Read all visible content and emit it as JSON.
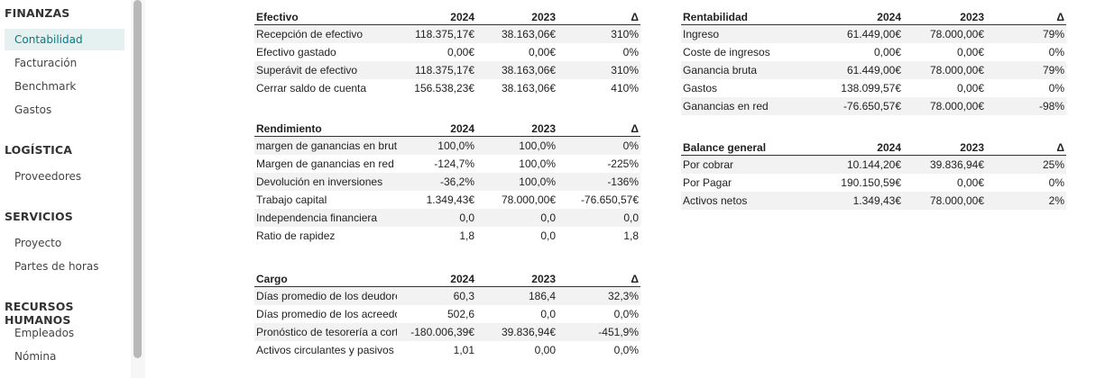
{
  "sidebar": {
    "sections": [
      {
        "title": "FINANZAS",
        "items": [
          "Contabilidad",
          "Facturación",
          "Benchmark",
          "Gastos"
        ]
      },
      {
        "title": "LOGÍSTICA",
        "items": [
          "Proveedores"
        ]
      },
      {
        "title": "SERVICIOS",
        "items": [
          "Proyecto",
          "Partes de horas"
        ]
      },
      {
        "title": "RECURSOS HUMANOS",
        "items": [
          "Empleados",
          "Nómina"
        ]
      }
    ],
    "active_item": "Contabilidad"
  },
  "tables": {
    "efectivo": {
      "headers": [
        "Efectivo",
        "2024",
        "2023",
        "Δ"
      ],
      "rows": [
        [
          "Recepción de efectivo",
          "118.375,17€",
          "38.163,06€",
          "310%"
        ],
        [
          "Efectivo gastado",
          "0,00€",
          "0,00€",
          "0%"
        ],
        [
          "Superávit de efectivo",
          "118.375,17€",
          "38.163,06€",
          "310%"
        ],
        [
          "Cerrar saldo de cuenta",
          "156.538,23€",
          "38.163,06€",
          "410%"
        ]
      ]
    },
    "rendimiento": {
      "headers": [
        "Rendimiento",
        "2024",
        "2023",
        "Δ"
      ],
      "rows": [
        [
          "margen de ganancias en bruto",
          "100,0%",
          "100,0%",
          "0%"
        ],
        [
          "Margen de ganancias en red",
          "-124,7%",
          "100,0%",
          "-225%"
        ],
        [
          "Devolución en inversiones",
          "-36,2%",
          "100,0%",
          "-136%"
        ],
        [
          "Trabajo capital",
          "1.349,43€",
          "78.000,00€",
          "-76.650,57€"
        ],
        [
          "Independencia financiera",
          "0,0",
          "0,0",
          "0,0"
        ],
        [
          "Ratio de rapidez",
          "1,8",
          "0,0",
          "1,8"
        ]
      ]
    },
    "cargo": {
      "headers": [
        "Cargo",
        "2024",
        "2023",
        "Δ"
      ],
      "rows": [
        [
          "Días promedio de los deudores",
          "60,3",
          "186,4",
          "32,3%"
        ],
        [
          "Días promedio de los acreedores",
          "502,6",
          "0,0",
          "0,0%"
        ],
        [
          "Pronóstico de tesorería a corto plazo",
          "-180.006,39€",
          "39.836,94€",
          "-451,9%"
        ],
        [
          "Activos circulantes y pasivos",
          "1,01",
          "0,00",
          "0,0%"
        ]
      ]
    },
    "rentabilidad": {
      "headers": [
        "Rentabilidad",
        "2024",
        "2023",
        "Δ"
      ],
      "rows": [
        [
          "Ingreso",
          "61.449,00€",
          "78.000,00€",
          "79%"
        ],
        [
          "Coste de ingresos",
          "0,00€",
          "0,00€",
          "0%"
        ],
        [
          "Ganancia bruta",
          "61.449,00€",
          "78.000,00€",
          "79%"
        ],
        [
          "Gastos",
          "138.099,57€",
          "0,00€",
          "0%"
        ],
        [
          "Ganancias en red",
          "-76.650,57€",
          "78.000,00€",
          "-98%"
        ]
      ]
    },
    "balance": {
      "headers": [
        "Balance general",
        "2024",
        "2023",
        "Δ"
      ],
      "rows": [
        [
          "Por cobrar",
          "10.144,20€",
          "39.836,94€",
          "25%"
        ],
        [
          "Por Pagar",
          "190.150,59€",
          "0,00€",
          "0%"
        ],
        [
          "Activos netos",
          "1.349,43€",
          "78.000,00€",
          "2%"
        ]
      ]
    }
  }
}
